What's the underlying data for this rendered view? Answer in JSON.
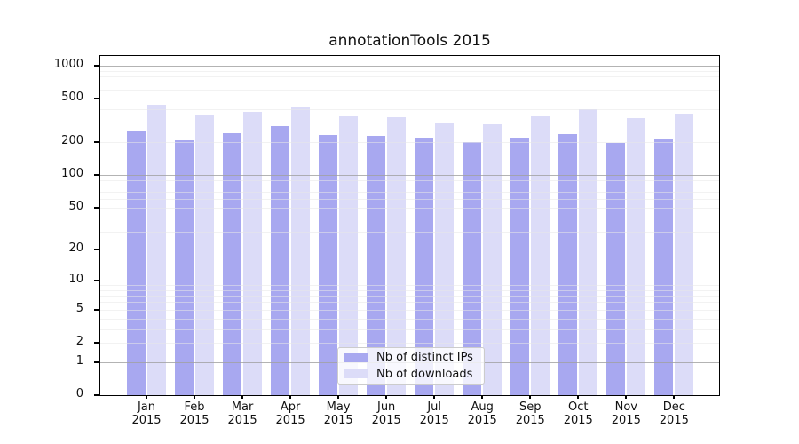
{
  "chart_data": {
    "type": "bar",
    "title": "annotationTools 2015",
    "categories": [
      "Jan 2015",
      "Feb 2015",
      "Mar 2015",
      "Apr 2015",
      "May 2015",
      "Jun 2015",
      "Jul 2015",
      "Aug 2015",
      "Sep 2015",
      "Oct 2015",
      "Nov 2015",
      "Dec 2015"
    ],
    "series": [
      {
        "name": "Nb of distinct IPs",
        "color": "#a8a8f0",
        "values": [
          250,
          207,
          240,
          280,
          232,
          227,
          218,
          201,
          222,
          238,
          197,
          214
        ]
      },
      {
        "name": "Nb of downloads",
        "color": "#dcdcf8",
        "values": [
          440,
          355,
          375,
          425,
          345,
          337,
          305,
          292,
          345,
          400,
          330,
          365
        ]
      }
    ],
    "xlabel": "",
    "ylabel": "",
    "yscale": "log(1+x)",
    "ytick_labels": [
      "0",
      "1",
      "2",
      "5",
      "10",
      "20",
      "50",
      "100",
      "200",
      "500",
      "1000"
    ],
    "yticks": [
      0,
      1,
      2,
      5,
      10,
      20,
      50,
      100,
      200,
      500,
      1000
    ],
    "ylim": [
      0,
      1230
    ],
    "grid": "horizontal, log minor + decade major, drawn over bars",
    "legend_position": "bottom-center inside plot"
  }
}
